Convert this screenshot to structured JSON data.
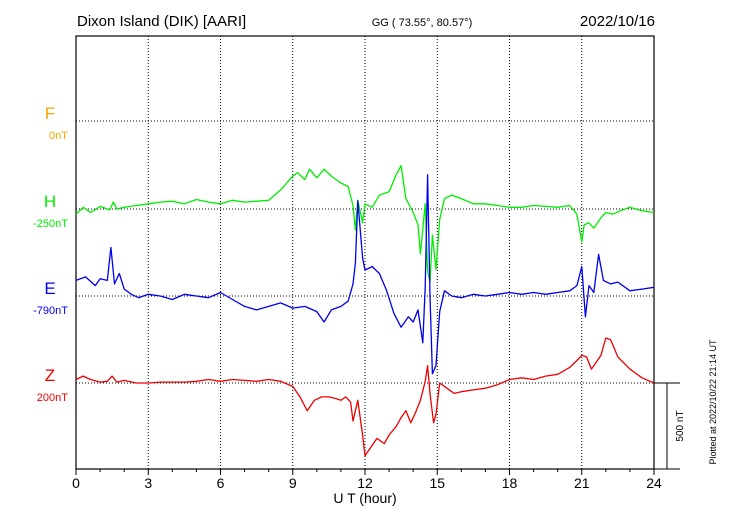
{
  "header": {
    "station": "Dixon Island (DIK)  [AARI]",
    "coords": "GG ( 73.55°,  80.57°)",
    "date": "2022/10/16"
  },
  "footer": {
    "plotted": "Plotted at 2022/10/22 21:14 UT",
    "scale_label": "500 nT"
  },
  "chart_data": {
    "type": "line",
    "title": "Dixon Island (DIK)  [AARI]",
    "xlabel": "U T (hour)",
    "xlim": [
      0,
      24
    ],
    "xticks": [
      0,
      3,
      6,
      9,
      12,
      15,
      18,
      21,
      24
    ],
    "x_tick_labels": [
      "0",
      "3",
      "6",
      "9",
      "12",
      "15",
      "18",
      "21",
      "24"
    ],
    "scale_nT_per_division": 500,
    "grid": true,
    "series": [
      {
        "name": "F",
        "baseline_label": "0nT",
        "color": "#f5a800",
        "points": []
      },
      {
        "name": "H",
        "baseline_label": "-250nT",
        "color": "#00ee00",
        "points": [
          [
            0.0,
            -30
          ],
          [
            0.3,
            10
          ],
          [
            0.6,
            -20
          ],
          [
            1.0,
            15
          ],
          [
            1.4,
            -5
          ],
          [
            1.55,
            40
          ],
          [
            1.7,
            0
          ],
          [
            2.0,
            10
          ],
          [
            2.5,
            20
          ],
          [
            3.0,
            30
          ],
          [
            3.5,
            40
          ],
          [
            4.0,
            45
          ],
          [
            4.5,
            30
          ],
          [
            5.0,
            55
          ],
          [
            5.5,
            40
          ],
          [
            6.0,
            30
          ],
          [
            6.5,
            50
          ],
          [
            7.0,
            40
          ],
          [
            7.5,
            45
          ],
          [
            8.0,
            50
          ],
          [
            8.5,
            110
          ],
          [
            9.0,
            190
          ],
          [
            9.2,
            210
          ],
          [
            9.5,
            170
          ],
          [
            9.7,
            230
          ],
          [
            10.0,
            180
          ],
          [
            10.3,
            230
          ],
          [
            10.6,
            190
          ],
          [
            11.0,
            150
          ],
          [
            11.3,
            130
          ],
          [
            11.5,
            20
          ],
          [
            11.6,
            -120
          ],
          [
            11.7,
            50
          ],
          [
            11.9,
            -80
          ],
          [
            12.0,
            30
          ],
          [
            12.3,
            10
          ],
          [
            12.6,
            80
          ],
          [
            13.0,
            100
          ],
          [
            13.3,
            200
          ],
          [
            13.5,
            250
          ],
          [
            13.7,
            60
          ],
          [
            14.0,
            -20
          ],
          [
            14.2,
            -90
          ],
          [
            14.3,
            -260
          ],
          [
            14.5,
            30
          ],
          [
            14.6,
            -360
          ],
          [
            14.7,
            -420
          ],
          [
            14.8,
            -150
          ],
          [
            14.95,
            -350
          ],
          [
            15.1,
            -60
          ],
          [
            15.3,
            60
          ],
          [
            15.6,
            80
          ],
          [
            16.0,
            60
          ],
          [
            16.5,
            30
          ],
          [
            17.0,
            30
          ],
          [
            17.5,
            20
          ],
          [
            18.0,
            10
          ],
          [
            18.5,
            10
          ],
          [
            19.0,
            20
          ],
          [
            19.5,
            15
          ],
          [
            20.0,
            10
          ],
          [
            20.5,
            20
          ],
          [
            20.8,
            -30
          ],
          [
            21.0,
            -190
          ],
          [
            21.1,
            -90
          ],
          [
            21.3,
            -80
          ],
          [
            21.5,
            -110
          ],
          [
            21.8,
            -50
          ],
          [
            22.0,
            -20
          ],
          [
            22.3,
            -30
          ],
          [
            22.6,
            -10
          ],
          [
            23.0,
            10
          ],
          [
            23.5,
            -10
          ],
          [
            24.0,
            -20
          ]
        ]
      },
      {
        "name": "E",
        "baseline_label": "-790nT",
        "color": "#0000ee",
        "points": [
          [
            0.0,
            90
          ],
          [
            0.4,
            110
          ],
          [
            0.8,
            60
          ],
          [
            1.0,
            100
          ],
          [
            1.3,
            90
          ],
          [
            1.45,
            280
          ],
          [
            1.6,
            70
          ],
          [
            1.8,
            130
          ],
          [
            2.0,
            40
          ],
          [
            2.3,
            10
          ],
          [
            2.6,
            -10
          ],
          [
            3.0,
            10
          ],
          [
            3.5,
            0
          ],
          [
            4.0,
            -20
          ],
          [
            4.5,
            10
          ],
          [
            5.0,
            0
          ],
          [
            5.5,
            -10
          ],
          [
            6.0,
            20
          ],
          [
            6.5,
            -20
          ],
          [
            7.0,
            -60
          ],
          [
            7.5,
            -80
          ],
          [
            8.0,
            -60
          ],
          [
            8.5,
            -40
          ],
          [
            9.0,
            -70
          ],
          [
            9.5,
            -60
          ],
          [
            10.0,
            -90
          ],
          [
            10.3,
            -150
          ],
          [
            10.6,
            -80
          ],
          [
            11.0,
            -60
          ],
          [
            11.3,
            -30
          ],
          [
            11.5,
            70
          ],
          [
            11.6,
            190
          ],
          [
            11.7,
            550
          ],
          [
            11.9,
            220
          ],
          [
            12.0,
            150
          ],
          [
            12.3,
            170
          ],
          [
            12.6,
            130
          ],
          [
            12.9,
            30
          ],
          [
            13.2,
            -100
          ],
          [
            13.5,
            -180
          ],
          [
            13.8,
            -120
          ],
          [
            14.0,
            -150
          ],
          [
            14.2,
            -80
          ],
          [
            14.4,
            -270
          ],
          [
            14.5,
            50
          ],
          [
            14.6,
            700
          ],
          [
            14.7,
            0
          ],
          [
            14.8,
            -450
          ],
          [
            14.95,
            -400
          ],
          [
            15.1,
            -90
          ],
          [
            15.3,
            30
          ],
          [
            15.6,
            0
          ],
          [
            16.0,
            -10
          ],
          [
            16.5,
            10
          ],
          [
            17.0,
            0
          ],
          [
            17.5,
            10
          ],
          [
            18.0,
            20
          ],
          [
            18.5,
            10
          ],
          [
            19.0,
            20
          ],
          [
            19.5,
            10
          ],
          [
            20.0,
            20
          ],
          [
            20.5,
            30
          ],
          [
            20.8,
            60
          ],
          [
            21.0,
            170
          ],
          [
            21.15,
            -120
          ],
          [
            21.3,
            60
          ],
          [
            21.5,
            20
          ],
          [
            21.7,
            240
          ],
          [
            21.9,
            90
          ],
          [
            22.2,
            70
          ],
          [
            22.5,
            80
          ],
          [
            23.0,
            30
          ],
          [
            23.5,
            40
          ],
          [
            24.0,
            50
          ]
        ]
      },
      {
        "name": "Z",
        "baseline_label": "200nT",
        "color": "#ee0000",
        "points": [
          [
            0.0,
            20
          ],
          [
            0.3,
            40
          ],
          [
            0.6,
            20
          ],
          [
            1.0,
            5
          ],
          [
            1.3,
            10
          ],
          [
            1.5,
            40
          ],
          [
            1.7,
            5
          ],
          [
            2.0,
            15
          ],
          [
            2.5,
            0
          ],
          [
            3.0,
            0
          ],
          [
            3.5,
            5
          ],
          [
            4.0,
            5
          ],
          [
            4.5,
            5
          ],
          [
            5.0,
            10
          ],
          [
            5.5,
            20
          ],
          [
            6.0,
            10
          ],
          [
            6.5,
            20
          ],
          [
            7.0,
            15
          ],
          [
            7.5,
            10
          ],
          [
            8.0,
            20
          ],
          [
            8.5,
            10
          ],
          [
            9.0,
            -20
          ],
          [
            9.3,
            -80
          ],
          [
            9.6,
            -160
          ],
          [
            9.9,
            -100
          ],
          [
            10.2,
            -80
          ],
          [
            10.5,
            -80
          ],
          [
            10.8,
            -90
          ],
          [
            11.0,
            -100
          ],
          [
            11.2,
            -80
          ],
          [
            11.4,
            -110
          ],
          [
            11.5,
            -220
          ],
          [
            11.7,
            -100
          ],
          [
            11.9,
            -300
          ],
          [
            12.0,
            -420
          ],
          [
            12.2,
            -380
          ],
          [
            12.5,
            -320
          ],
          [
            12.8,
            -350
          ],
          [
            13.0,
            -300
          ],
          [
            13.3,
            -250
          ],
          [
            13.5,
            -200
          ],
          [
            13.7,
            -160
          ],
          [
            13.9,
            -230
          ],
          [
            14.1,
            -170
          ],
          [
            14.3,
            -100
          ],
          [
            14.5,
            10
          ],
          [
            14.6,
            100
          ],
          [
            14.7,
            -60
          ],
          [
            14.85,
            -230
          ],
          [
            14.95,
            -180
          ],
          [
            15.1,
            0
          ],
          [
            15.4,
            -30
          ],
          [
            15.7,
            -60
          ],
          [
            16.0,
            -50
          ],
          [
            16.5,
            -40
          ],
          [
            17.0,
            -30
          ],
          [
            17.5,
            -10
          ],
          [
            18.0,
            20
          ],
          [
            18.5,
            30
          ],
          [
            19.0,
            20
          ],
          [
            19.5,
            40
          ],
          [
            20.0,
            50
          ],
          [
            20.5,
            90
          ],
          [
            20.8,
            130
          ],
          [
            21.0,
            160
          ],
          [
            21.2,
            150
          ],
          [
            21.4,
            80
          ],
          [
            21.6,
            120
          ],
          [
            21.8,
            160
          ],
          [
            22.0,
            260
          ],
          [
            22.2,
            250
          ],
          [
            22.5,
            150
          ],
          [
            23.0,
            80
          ],
          [
            23.5,
            30
          ],
          [
            24.0,
            0
          ]
        ]
      }
    ]
  }
}
